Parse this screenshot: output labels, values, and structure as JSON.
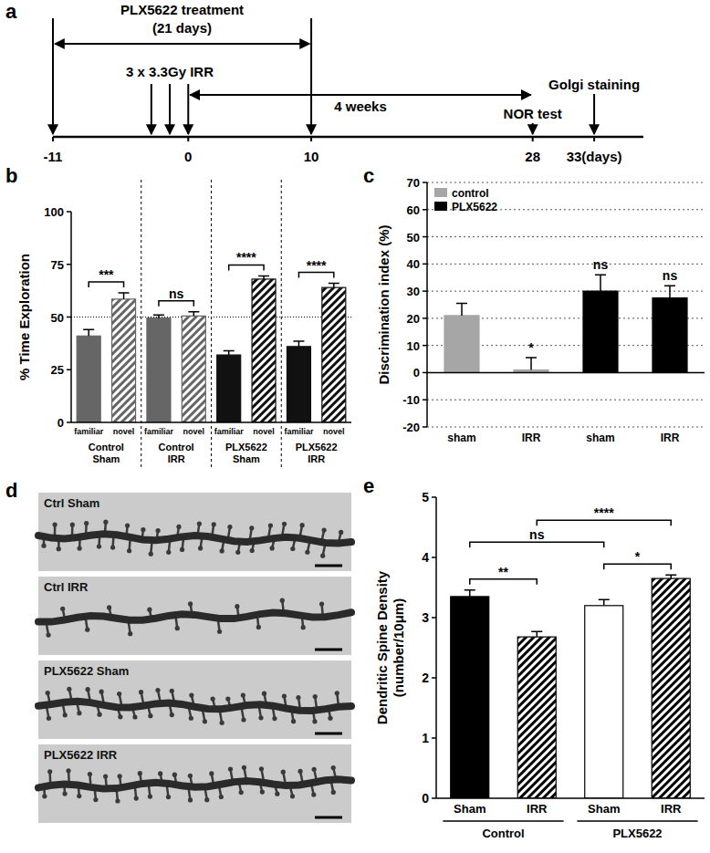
{
  "panel_labels": [
    "a",
    "b",
    "c",
    "d",
    "e"
  ],
  "timeline": {
    "ticks": [
      -11,
      0,
      10,
      28,
      {
        "value": 33,
        "label": "33(days)"
      }
    ],
    "range": [
      -11,
      37
    ],
    "treatment": {
      "label": "PLX5622 treatment",
      "duration": "(21 days)",
      "from": -11,
      "to": 10
    },
    "irradiation": {
      "label": "3 x 3.3Gy IRR",
      "days": [
        -3,
        -1.5,
        0
      ]
    },
    "interval": {
      "label": "4 weeks",
      "from": 0,
      "to": 28
    },
    "events": [
      {
        "label": "NOR test",
        "day": 28
      },
      {
        "label": "Golgi staining",
        "day": 33
      }
    ]
  },
  "micrographs": {
    "labels": [
      "Ctrl Sham",
      "Ctrl IRR",
      "PLX5622 Sham",
      "PLX5622 IRR"
    ]
  },
  "chart_data": [
    {
      "type": "bar",
      "y_label": "% Time Exploration",
      "categories": [
        "familiar",
        "novel",
        "familiar",
        "novel",
        "familiar",
        "novel",
        "familiar",
        "novel"
      ],
      "values": [
        41,
        58.5,
        49.5,
        50.5,
        32,
        68,
        36,
        64
      ],
      "errors": [
        3,
        3,
        1.5,
        2,
        2,
        1.5,
        2.5,
        2
      ],
      "colors": [
        "#666666",
        "#666666",
        "#666666",
        "#666666",
        "#111111",
        "#111111",
        "#111111",
        "#111111"
      ],
      "ylim": [
        0,
        100
      ],
      "yticks": [
        0,
        25,
        50,
        75,
        100
      ],
      "reference_line": 50,
      "groups": [
        {
          "label": [
            "Control",
            "Sham"
          ],
          "members": [
            0,
            1
          ]
        },
        {
          "label": [
            "Control",
            "IRR"
          ],
          "members": [
            2,
            3
          ]
        },
        {
          "label": [
            "PLX5622",
            "Sham"
          ],
          "members": [
            4,
            5
          ]
        },
        {
          "label": [
            "PLX5622",
            "IRR"
          ],
          "members": [
            6,
            7
          ]
        }
      ],
      "comparisons": [
        {
          "members": [
            0,
            1
          ],
          "label": "***"
        },
        {
          "members": [
            2,
            3
          ],
          "label": "ns"
        },
        {
          "members": [
            4,
            5
          ],
          "label": "****"
        },
        {
          "members": [
            6,
            7
          ],
          "label": "****"
        }
      ]
    },
    {
      "type": "bar",
      "y_label": "Discrimination index (%)",
      "categories": [
        "sham",
        "IRR",
        "sham",
        "IRR"
      ],
      "values": [
        21,
        1,
        30,
        27.5
      ],
      "errors": [
        4.5,
        4.5,
        6,
        4.5
      ],
      "colors": [
        "#a6a6a6",
        "#a6a6a6",
        "#000000",
        "#000000"
      ],
      "ylim": [
        -20,
        70
      ],
      "yticks": [
        -20,
        -10,
        0,
        10,
        20,
        30,
        40,
        50,
        60,
        70
      ],
      "grid": true,
      "legend": "top-left",
      "legend_entries": [
        {
          "name": "control",
          "color": "#a6a6a6"
        },
        {
          "name": "PLX5622",
          "color": "#000000"
        }
      ],
      "significance": [
        null,
        "*",
        "ns",
        "ns"
      ]
    },
    {
      "type": "bar",
      "y_label": [
        "Dendritic Spine Density",
        "(number/10μm)"
      ],
      "categories": [
        "Sham",
        "IRR",
        "Sham",
        "IRR"
      ],
      "values": [
        3.35,
        2.68,
        3.2,
        3.65
      ],
      "errors": [
        0.11,
        0.09,
        0.1,
        0.06
      ],
      "colors": [
        "#000000",
        "#000000",
        "#ffffff",
        "#000000"
      ],
      "ylim": [
        0,
        5
      ],
      "yticks": [
        0,
        1,
        2,
        3,
        4,
        5
      ],
      "groups": [
        {
          "label": "Control",
          "members": [
            0,
            1
          ]
        },
        {
          "label": "PLX5622",
          "members": [
            2,
            3
          ]
        }
      ],
      "comparisons": [
        {
          "members": [
            0,
            1
          ],
          "label": "**"
        },
        {
          "members": [
            2,
            3
          ],
          "label": "*"
        },
        {
          "members": [
            0,
            2
          ],
          "label": "ns"
        },
        {
          "members": [
            1,
            3
          ],
          "label": "****"
        }
      ]
    }
  ]
}
